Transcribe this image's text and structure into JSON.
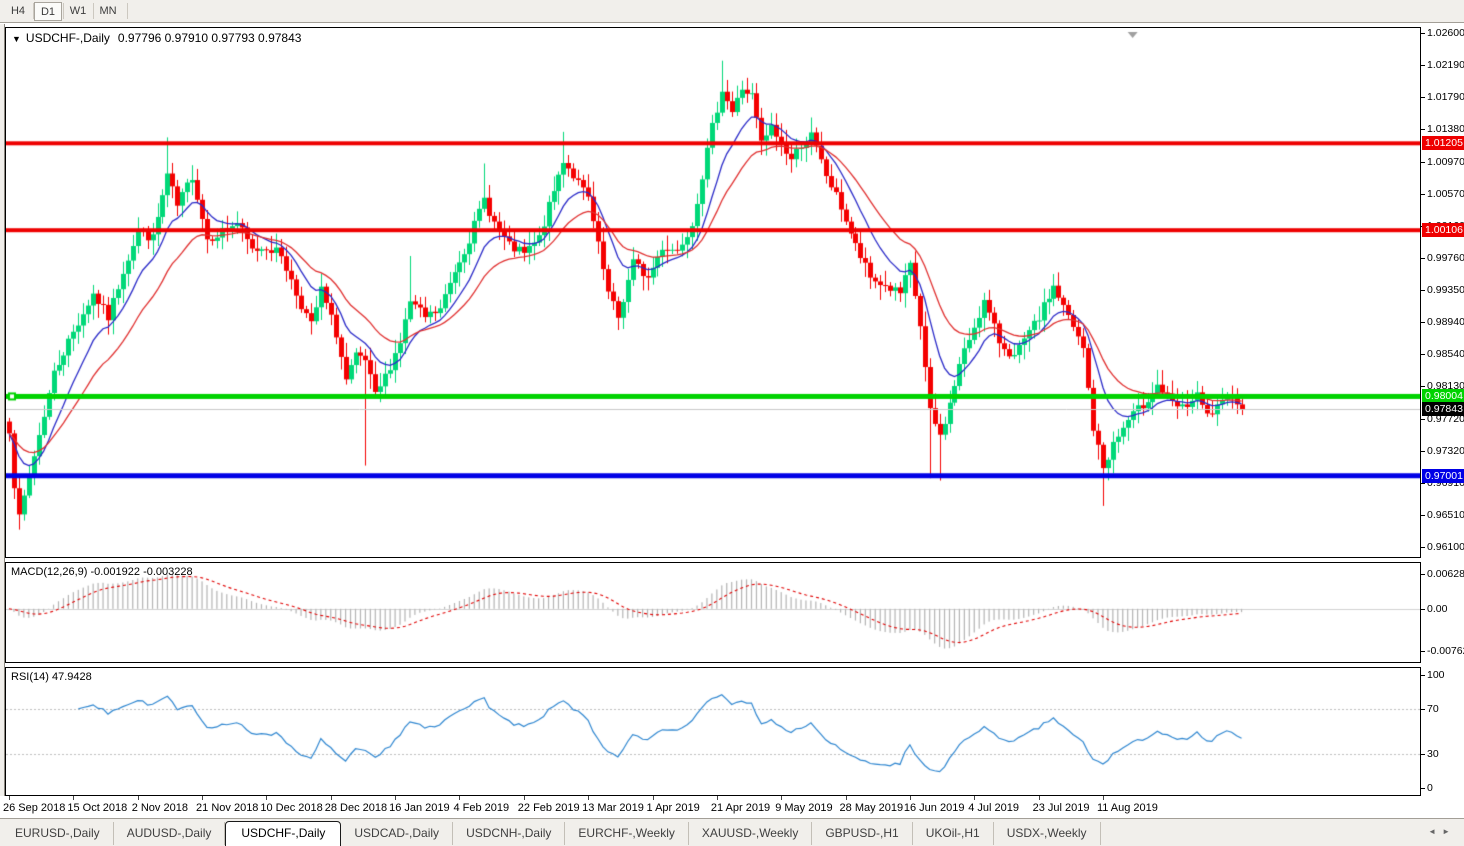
{
  "toolbar": {
    "buttons": [
      {
        "label": "H4",
        "active": false
      },
      {
        "label": "D1",
        "active": true
      },
      {
        "label": "W1",
        "active": false
      },
      {
        "label": "MN",
        "active": false
      }
    ]
  },
  "icons": {
    "collapse": "▼",
    "shift_marker": "▼",
    "scroll_left": "◄",
    "scroll_right": "►"
  },
  "chart": {
    "title_symbol": "USDCHF-,Daily",
    "title_ohlc": "0.97796 0.97910 0.97793 0.97843",
    "range": {
      "top": 1.026,
      "bottom": 0.961
    },
    "y_ticks": [
      "1.02600",
      "1.02190",
      "1.01790",
      "1.01380",
      "1.00970",
      "1.00570",
      "1.00160",
      "0.99760",
      "0.99350",
      "0.98940",
      "0.98540",
      "0.98130",
      "0.97720",
      "0.97320",
      "0.96910",
      "0.96510",
      "0.96100"
    ],
    "price_labels": [
      {
        "text": "1.01205",
        "price": 1.01205,
        "bg": "#ee0000",
        "fg": "#ffffff"
      },
      {
        "text": "1.00106",
        "price": 1.00106,
        "bg": "#ee0000",
        "fg": "#ffffff"
      },
      {
        "text": "0.98004",
        "price": 0.98004,
        "bg": "#00d300",
        "fg": "#ffffff"
      },
      {
        "text": "0.97843",
        "price": 0.97843,
        "bg": "#000000",
        "fg": "#ffffff"
      },
      {
        "text": "0.97001",
        "price": 0.97001,
        "bg": "#0000e6",
        "fg": "#ffffff"
      }
    ],
    "h_lines": [
      {
        "price": 1.01205,
        "color": "#ee0000",
        "w": 4,
        "handle": false
      },
      {
        "price": 1.00106,
        "color": "#ee0000",
        "w": 4,
        "handle": false
      },
      {
        "price": 0.98004,
        "color": "#00d300",
        "w": 5,
        "handle": true
      },
      {
        "price": 0.97001,
        "color": "#0000e6",
        "w": 5,
        "handle": false
      }
    ],
    "current_price_line": {
      "price": 0.97843,
      "color": "#c8c8c8"
    },
    "shift_marker_bar": 227
  },
  "panels": {
    "macd_label": "MACD(12,26,9) -0.001922 -0.003228",
    "rsi_label": "RSI(14) 47.9428"
  },
  "chart_data": {
    "type": "candlestick",
    "symbol": "USDCHF",
    "timeframe": "Daily",
    "ohlc_current": {
      "open": 0.97796,
      "high": 0.9791,
      "low": 0.97793,
      "close": 0.97843
    },
    "n_bars": 250,
    "seed": 7,
    "noise": 0.0013,
    "wick": 0.0016,
    "up_color": "#00d878",
    "down_color": "#f40000",
    "anchors": [
      [
        0,
        0.976
      ],
      [
        1,
        0.969
      ],
      [
        2,
        0.9645
      ],
      [
        4,
        0.97
      ],
      [
        9,
        0.983
      ],
      [
        12,
        0.987
      ],
      [
        17,
        0.993
      ],
      [
        20,
        0.99
      ],
      [
        23,
        0.996
      ],
      [
        26,
        1.001
      ],
      [
        29,
        1.0
      ],
      [
        32,
        1.008
      ],
      [
        34,
        1.004
      ],
      [
        37,
        1.008
      ],
      [
        40,
        1.0
      ],
      [
        43,
        1.001
      ],
      [
        46,
        1.002
      ],
      [
        49,
        0.9985
      ],
      [
        52,
        0.999
      ],
      [
        55,
        0.998
      ],
      [
        58,
        0.993
      ],
      [
        61,
        0.989
      ],
      [
        63,
        0.9935
      ],
      [
        66,
        0.988
      ],
      [
        68,
        0.982
      ],
      [
        70,
        0.985
      ],
      [
        72,
        0.9845
      ],
      [
        74,
        0.98
      ],
      [
        76,
        0.9825
      ],
      [
        79,
        0.987
      ],
      [
        81,
        0.992
      ],
      [
        84,
        0.99
      ],
      [
        87,
        0.991
      ],
      [
        90,
        0.996
      ],
      [
        93,
        1.0
      ],
      [
        96,
        1.005
      ],
      [
        98,
        1.002
      ],
      [
        101,
        0.999
      ],
      [
        104,
        0.998
      ],
      [
        107,
        1.0
      ],
      [
        110,
        1.006
      ],
      [
        112,
        1.01
      ],
      [
        114,
        1.008
      ],
      [
        117,
        1.005
      ],
      [
        119,
        0.999
      ],
      [
        121,
        0.993
      ],
      [
        123,
        0.99
      ],
      [
        126,
        0.997
      ],
      [
        129,
        0.995
      ],
      [
        132,
        0.999
      ],
      [
        135,
        0.9985
      ],
      [
        138,
        1.002
      ],
      [
        140,
        1.008
      ],
      [
        142,
        1.014
      ],
      [
        144,
        1.019
      ],
      [
        146,
        1.016
      ],
      [
        148,
        1.019
      ],
      [
        150,
        1.018
      ],
      [
        152,
        1.012
      ],
      [
        154,
        1.014
      ],
      [
        158,
        1.01
      ],
      [
        160,
        1.012
      ],
      [
        162,
        1.013
      ],
      [
        165,
        1.008
      ],
      [
        168,
        1.004
      ],
      [
        171,
        0.999
      ],
      [
        174,
        0.995
      ],
      [
        177,
        0.994
      ],
      [
        180,
        0.993
      ],
      [
        182,
        0.9965
      ],
      [
        184,
        0.989
      ],
      [
        186,
        0.978
      ],
      [
        188,
        0.975
      ],
      [
        190,
        0.979
      ],
      [
        192,
        0.984
      ],
      [
        195,
        0.989
      ],
      [
        197,
        0.992
      ],
      [
        200,
        0.987
      ],
      [
        203,
        0.985
      ],
      [
        205,
        0.987
      ],
      [
        208,
        0.99
      ],
      [
        211,
        0.994
      ],
      [
        214,
        0.99
      ],
      [
        217,
        0.986
      ],
      [
        219,
        0.976
      ],
      [
        221,
        0.971
      ],
      [
        223,
        0.974
      ],
      [
        226,
        0.977
      ],
      [
        229,
        0.979
      ],
      [
        232,
        0.9815
      ],
      [
        235,
        0.979
      ],
      [
        237,
        0.9785
      ],
      [
        240,
        0.98
      ],
      [
        242,
        0.9775
      ],
      [
        245,
        0.979
      ],
      [
        247,
        0.9805
      ],
      [
        249,
        0.97843
      ]
    ],
    "wick_events": [
      [
        2,
        "low",
        0.9632
      ],
      [
        32,
        "high",
        1.0128
      ],
      [
        72,
        "low",
        0.9713
      ],
      [
        81,
        "high",
        0.9978
      ],
      [
        96,
        "high",
        1.0095
      ],
      [
        112,
        "high",
        1.0135
      ],
      [
        144,
        "high",
        1.0225
      ],
      [
        186,
        "low",
        0.9697
      ],
      [
        188,
        "low",
        0.9694
      ],
      [
        221,
        "low",
        0.9662
      ]
    ],
    "x_labels": [
      "26 Sep 2018",
      "15 Oct 2018",
      "2 Nov 2018",
      "21 Nov 2018",
      "10 Dec 2018",
      "28 Dec 2018",
      "16 Jan 2019",
      "4 Feb 2019",
      "22 Feb 2019",
      "13 Mar 2019",
      "1 Apr 2019",
      "21 Apr 2019",
      "9 May 2019",
      "28 May 2019",
      "16 Jun 2019",
      "4 Jul 2019",
      "23 Jul 2019",
      "11 Aug 2019"
    ],
    "label_every": 13,
    "ma_fast": {
      "period": 10,
      "color": "#2a2ac8"
    },
    "ma_slow": {
      "period": 21,
      "color": "#e03030"
    },
    "macd": {
      "params": [
        12,
        26,
        9
      ],
      "values": [
        -0.001922,
        -0.003228
      ],
      "ylim": [
        -0.00762,
        0.006286
      ],
      "ticks": [
        "0.006286",
        "0.00",
        "-0.00762"
      ],
      "hist_color": "#b4b4b4",
      "signal_color": "#e00000"
    },
    "rsi": {
      "period": 14,
      "value": 47.9428,
      "levels": [
        70,
        30
      ],
      "ticks": [
        "100",
        "70",
        "30",
        "0"
      ],
      "line_color": "#2e86d0"
    },
    "levels": {
      "resistance": [
        1.01205,
        1.00106
      ],
      "support_green": 0.98004,
      "support_blue": 0.97001,
      "current_bid": 0.97843
    }
  },
  "tabs": {
    "items": [
      {
        "label": "EURUSD-,Daily",
        "active": false
      },
      {
        "label": "AUDUSD-,Daily",
        "active": false
      },
      {
        "label": "USDCHF-,Daily",
        "active": true
      },
      {
        "label": "USDCAD-,Daily",
        "active": false
      },
      {
        "label": "USDCNH-,Daily",
        "active": false
      },
      {
        "label": "EURCHF-,Weekly",
        "active": false
      },
      {
        "label": "XAUUSD-,Weekly",
        "active": false
      },
      {
        "label": "GBPUSD-,H1",
        "active": false
      },
      {
        "label": "UKOil-,H1",
        "active": false
      },
      {
        "label": "USDX-,Weekly",
        "active": false
      }
    ]
  }
}
